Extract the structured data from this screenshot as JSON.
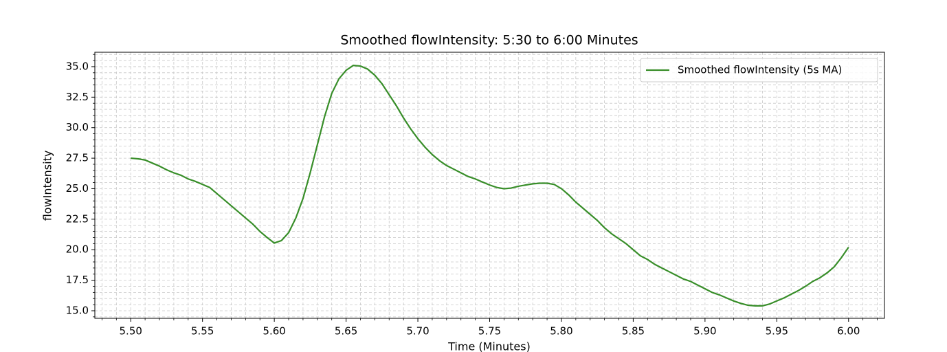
{
  "chart_data": {
    "type": "line",
    "title": "Smoothed flowIntensity: 5:30 to 6:00 Minutes",
    "xlabel": "Time (Minutes)",
    "ylabel": "flowIntensity",
    "x": [
      5.5,
      5.505,
      5.51,
      5.515,
      5.52,
      5.525,
      5.53,
      5.535,
      5.54,
      5.545,
      5.55,
      5.555,
      5.56,
      5.565,
      5.57,
      5.575,
      5.58,
      5.585,
      5.59,
      5.595,
      5.6,
      5.605,
      5.61,
      5.615,
      5.62,
      5.625,
      5.63,
      5.635,
      5.64,
      5.645,
      5.65,
      5.655,
      5.66,
      5.665,
      5.67,
      5.675,
      5.68,
      5.685,
      5.69,
      5.695,
      5.7,
      5.705,
      5.71,
      5.715,
      5.72,
      5.725,
      5.73,
      5.735,
      5.74,
      5.745,
      5.75,
      5.755,
      5.76,
      5.765,
      5.77,
      5.775,
      5.78,
      5.785,
      5.79,
      5.795,
      5.8,
      5.805,
      5.81,
      5.815,
      5.82,
      5.825,
      5.83,
      5.835,
      5.84,
      5.845,
      5.85,
      5.855,
      5.86,
      5.865,
      5.87,
      5.875,
      5.88,
      5.885,
      5.89,
      5.895,
      5.9,
      5.905,
      5.91,
      5.915,
      5.92,
      5.925,
      5.93,
      5.935,
      5.94,
      5.945,
      5.95,
      5.955,
      5.96,
      5.965,
      5.97,
      5.975,
      5.98,
      5.985,
      5.99,
      5.995,
      6.0
    ],
    "series": [
      {
        "name": "Smoothed flowIntensity (5s MA)",
        "color": "#388e29",
        "values": [
          27.5,
          27.45,
          27.35,
          27.1,
          26.85,
          26.55,
          26.3,
          26.1,
          25.8,
          25.6,
          25.35,
          25.1,
          24.6,
          24.1,
          23.6,
          23.1,
          22.6,
          22.1,
          21.5,
          21.0,
          20.55,
          20.75,
          21.4,
          22.6,
          24.2,
          26.3,
          28.6,
          30.9,
          32.8,
          34.0,
          34.7,
          35.1,
          35.05,
          34.8,
          34.3,
          33.6,
          32.7,
          31.8,
          30.8,
          29.9,
          29.1,
          28.4,
          27.8,
          27.3,
          26.9,
          26.6,
          26.3,
          26.0,
          25.8,
          25.55,
          25.3,
          25.1,
          25.0,
          25.05,
          25.2,
          25.3,
          25.4,
          25.45,
          25.45,
          25.35,
          25.0,
          24.5,
          23.9,
          23.4,
          22.9,
          22.4,
          21.8,
          21.3,
          20.9,
          20.5,
          20.0,
          19.5,
          19.2,
          18.8,
          18.5,
          18.2,
          17.9,
          17.6,
          17.4,
          17.1,
          16.8,
          16.5,
          16.3,
          16.05,
          15.8,
          15.6,
          15.45,
          15.4,
          15.4,
          15.55,
          15.8,
          16.05,
          16.35,
          16.65,
          17.0,
          17.4,
          17.7,
          18.1,
          18.6,
          19.35,
          20.2
        ]
      }
    ],
    "xlim": [
      5.475,
      6.025
    ],
    "ylim": [
      14.38,
      36.18
    ],
    "xticks": [
      {
        "value": 5.5,
        "label": "5.50"
      },
      5.55,
      {
        "value": 5.6,
        "label": "5.60"
      },
      5.65,
      {
        "value": 5.7,
        "label": "5.70"
      },
      5.75,
      {
        "value": 5.8,
        "label": "5.80"
      },
      5.85,
      {
        "value": 5.9,
        "label": "5.90"
      },
      5.95,
      {
        "value": 6,
        "label": "6.00"
      }
    ],
    "yticks": [
      {
        "value": 15,
        "label": "15.0"
      },
      17.5,
      {
        "value": 20,
        "label": "20.0"
      },
      22.5,
      {
        "value": 25,
        "label": "25.0"
      },
      27.5,
      {
        "value": 30,
        "label": "30.0"
      },
      32.5,
      {
        "value": 35,
        "label": "35.0"
      }
    ],
    "grid": true,
    "minor_grid": true,
    "legend": "upper right"
  }
}
